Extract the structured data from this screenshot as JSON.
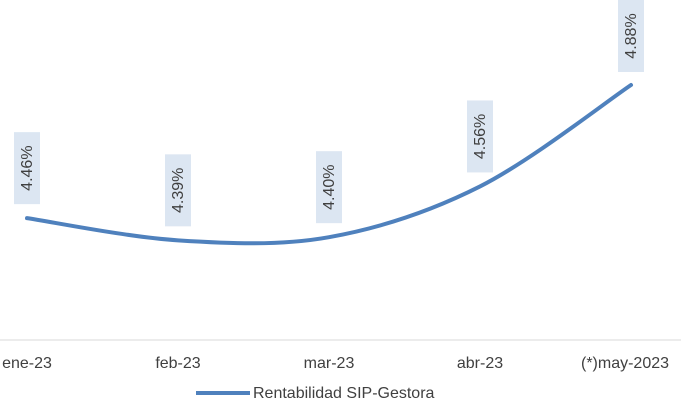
{
  "chart_data": {
    "type": "line",
    "categories": [
      "ene-23",
      "feb-23",
      "mar-23",
      "abr-23",
      "(*)may-2023"
    ],
    "series": [
      {
        "name": "Rentabilidad SIP-Gestora",
        "color": "#4f81bd",
        "values": [
          4.46,
          4.39,
          4.4,
          4.56,
          4.88
        ],
        "value_labels": [
          "4.46%",
          "4.39%",
          "4.40%",
          "4.56%",
          "4.88%"
        ]
      }
    ]
  }
}
